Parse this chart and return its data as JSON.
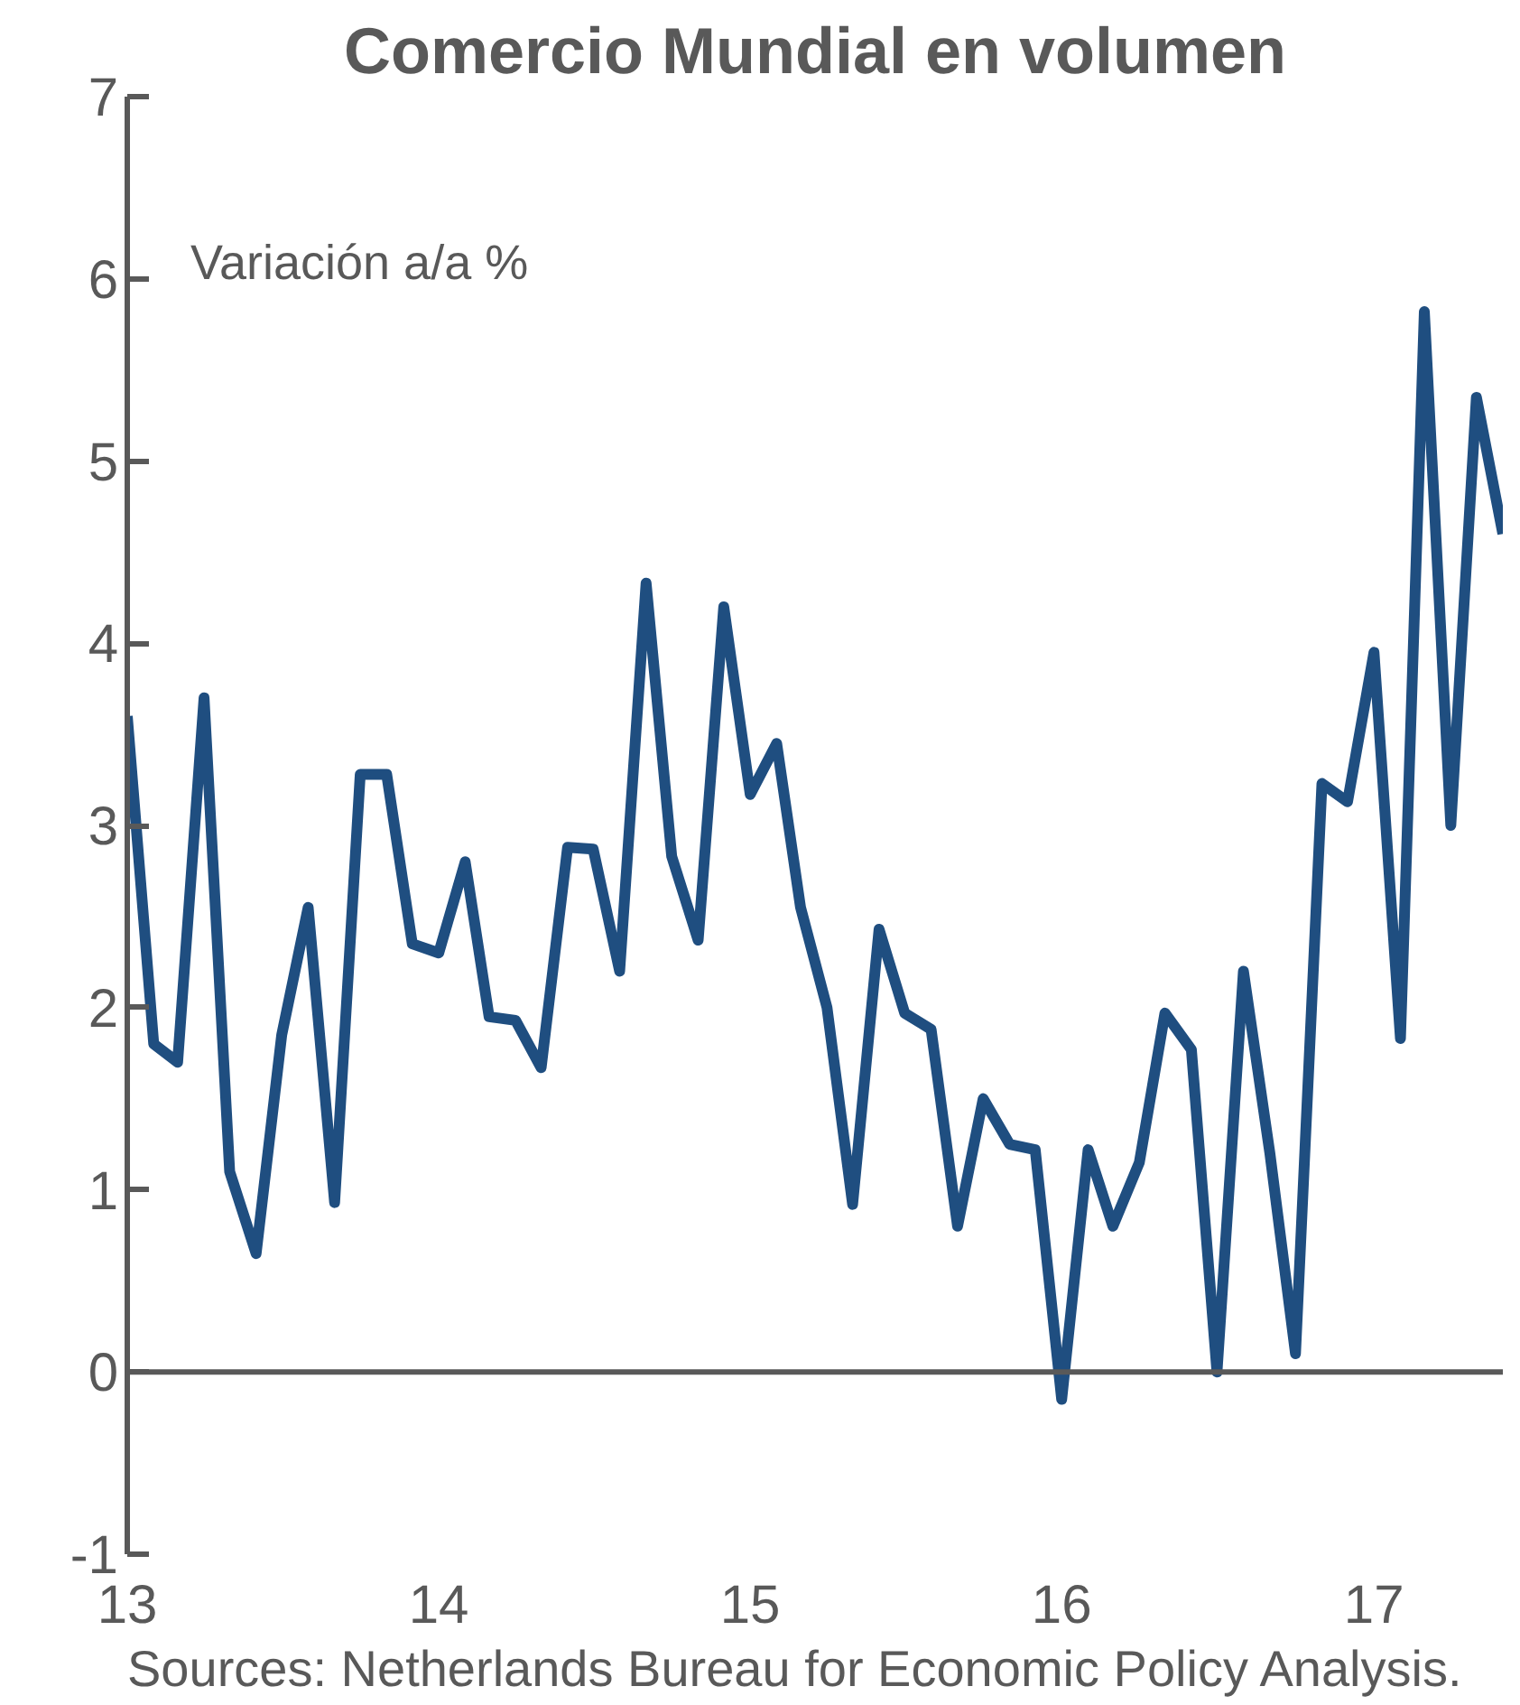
{
  "chart_data": {
    "type": "line",
    "title": "Comercio Mundial en volumen",
    "ylabel": "Variación a/a %",
    "annotations": [
      "Sources: Netherlands Bureau for Economic Policy Analysis."
    ],
    "x": [
      "2013-01",
      "2013-02",
      "2013-03",
      "2013-04",
      "2013-05",
      "2013-06",
      "2013-07",
      "2013-08",
      "2013-09",
      "2013-10",
      "2013-11",
      "2013-12",
      "2014-01",
      "2014-02",
      "2014-03",
      "2014-04",
      "2014-05",
      "2014-06",
      "2014-07",
      "2014-08",
      "2014-09",
      "2014-10",
      "2014-11",
      "2014-12",
      "2015-01",
      "2015-02",
      "2015-03",
      "2015-04",
      "2015-05",
      "2015-06",
      "2015-07",
      "2015-08",
      "2015-09",
      "2015-10",
      "2015-11",
      "2015-12",
      "2016-01",
      "2016-02",
      "2016-03",
      "2016-04",
      "2016-05",
      "2016-06",
      "2016-07",
      "2016-08",
      "2016-09",
      "2016-10",
      "2016-11",
      "2016-12",
      "2017-01",
      "2017-02",
      "2017-03",
      "2017-04",
      "2017-05",
      "2017-06"
    ],
    "series": [
      {
        "color": "#1f4e80",
        "values": [
          3.6,
          1.8,
          1.7,
          3.7,
          1.1,
          0.65,
          1.85,
          2.55,
          0.93,
          3.28,
          3.28,
          2.35,
          2.3,
          2.8,
          1.95,
          1.93,
          1.67,
          2.88,
          2.87,
          2.2,
          4.33,
          2.83,
          2.37,
          4.2,
          3.17,
          3.45,
          2.55,
          2.0,
          0.92,
          2.43,
          1.97,
          1.88,
          0.8,
          1.5,
          1.25,
          1.22,
          -0.15,
          1.22,
          0.8,
          1.15,
          1.97,
          1.77,
          0.0,
          2.2,
          1.2,
          0.1,
          3.23,
          3.13,
          3.95,
          1.83,
          5.82,
          3.0,
          5.35,
          4.6
        ]
      }
    ],
    "xlim": [
      "2013-01",
      "2017-06"
    ],
    "xticks": [
      {
        "value": "2013-01",
        "label": "13"
      },
      {
        "value": "2014-01",
        "label": "14"
      },
      {
        "value": "2015-01",
        "label": "15"
      },
      {
        "value": "2016-01",
        "label": "16"
      },
      {
        "value": "2017-01",
        "label": "17"
      }
    ],
    "ylim": [
      -1,
      7
    ],
    "yticks": [
      -1,
      0,
      1,
      2,
      3,
      4,
      5,
      6,
      7
    ],
    "ref_lines": [
      {
        "axis": "y",
        "value": 0,
        "color": "#595959"
      }
    ],
    "grid": false,
    "line_style": "solid"
  }
}
